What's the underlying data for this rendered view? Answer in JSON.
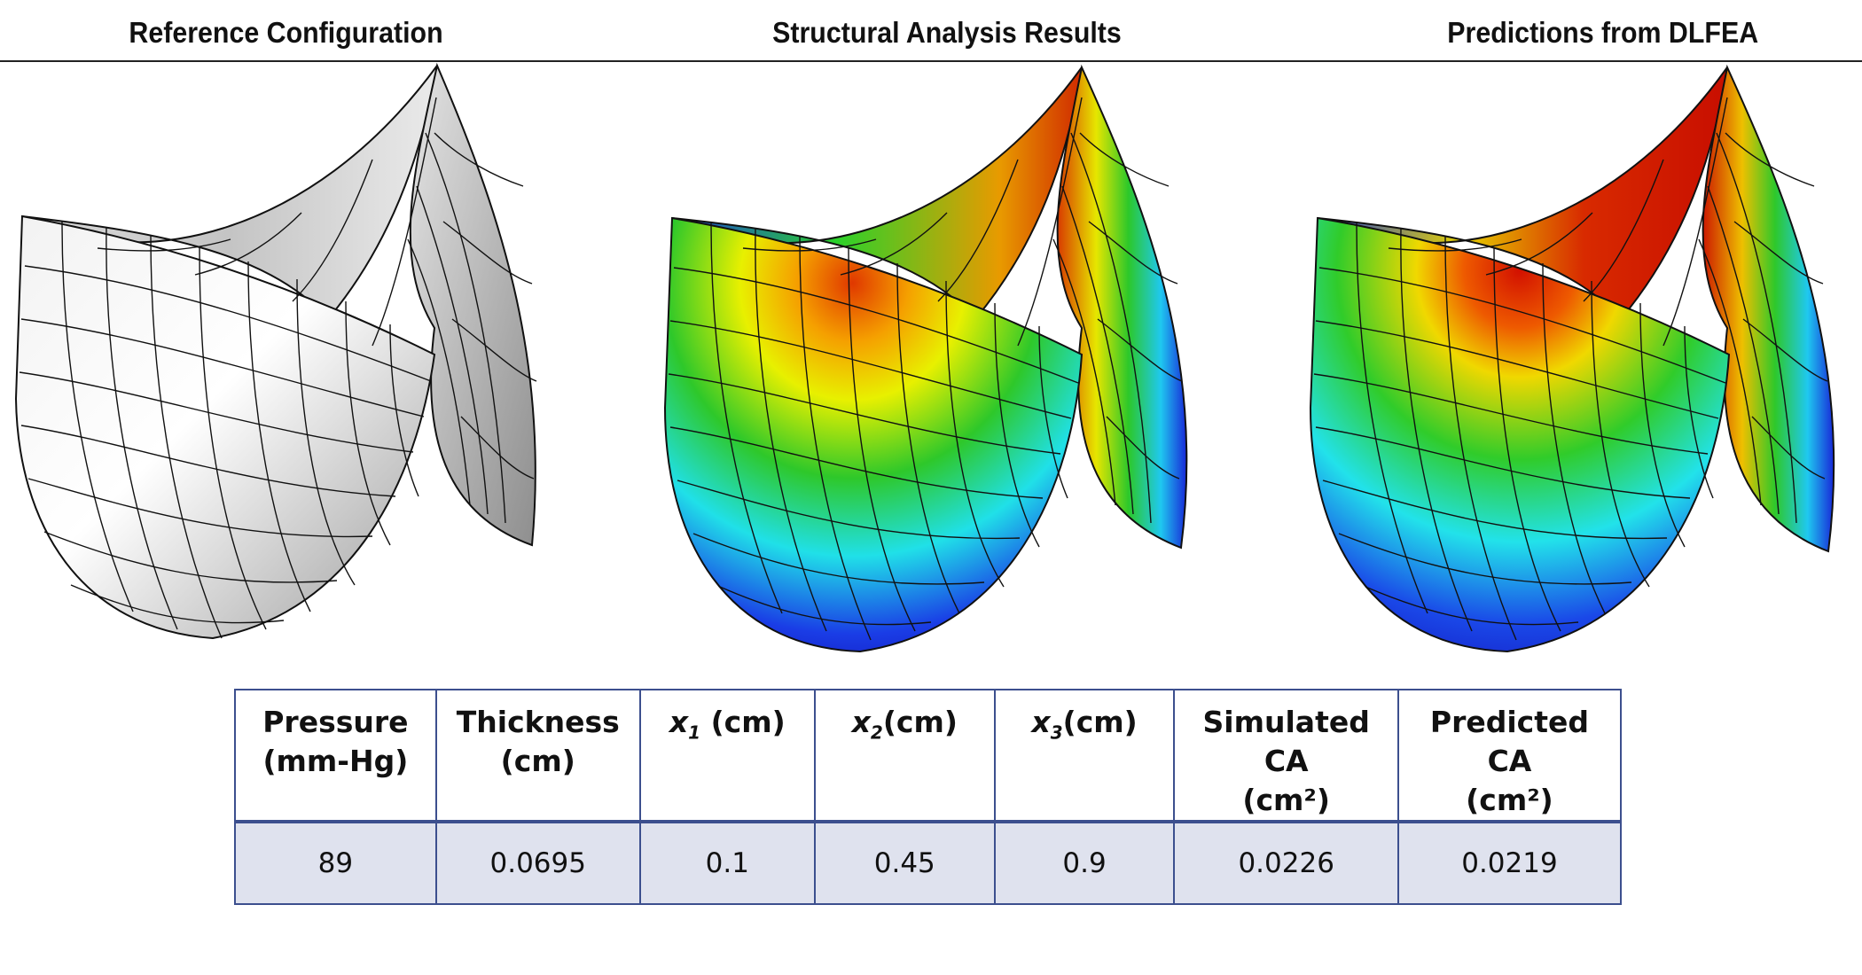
{
  "panels": {
    "reference": "Reference Configuration",
    "structural": "Structural Analysis Results",
    "dlfea": "Predictions from DLFEA"
  },
  "table": {
    "headers": {
      "pressure": [
        "Pressure",
        "(mm-Hg)"
      ],
      "thickness": [
        "Thickness",
        "(cm)"
      ],
      "x1": {
        "var": "x",
        "sub": "1",
        "unit": "(cm)"
      },
      "x2": {
        "var": "x",
        "sub": "2",
        "unit": "(cm)"
      },
      "x3": {
        "var": "x",
        "sub": "3",
        "unit": "(cm)"
      },
      "simulated_ca": [
        "Simulated CA",
        "(cm²)"
      ],
      "predicted_ca": [
        "Predicted CA",
        "(cm²)"
      ]
    },
    "row": {
      "pressure": "89",
      "thickness": "0.0695",
      "x1": "0.1",
      "x2": "0.45",
      "x3": "0.9",
      "simulated_ca": "0.0226",
      "predicted_ca": "0.0219"
    }
  },
  "colors": {
    "table_border": "#3c4f8e",
    "table_row_bg": "#dfe2ee",
    "mesh_line": "#111111"
  }
}
